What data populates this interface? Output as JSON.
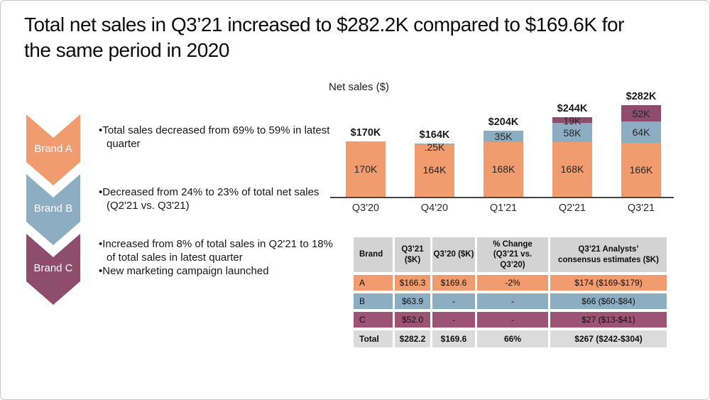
{
  "slide": {
    "title_lines": [
      "Total net sales in Q3’21 increased to $282.2K compared to $169.6K for",
      "the same period in 2020"
    ]
  },
  "colors": {
    "brand_a": "#F09C6E",
    "brand_b": "#8DADC2",
    "brand_c": "#8E4D6D",
    "brand_c_table": "#9C5375",
    "table_header_bg": "#D3D3D3",
    "table_total_bg": "#DBDBDB",
    "axis": "#454545"
  },
  "brands": [
    {
      "name": "Brand A",
      "bullets": [
        "Total sales decreased from 69% to 59% in latest quarter"
      ]
    },
    {
      "name": "Brand B",
      "bullets": [
        "Decreased from 24% to 23% of total net sales (Q2'21 vs. Q3'21)"
      ]
    },
    {
      "name": "Brand C",
      "bullets": [
        "Increased from 8% of total sales in Q2'21 to 18% of total sales in latest quarter",
        "New marketing campaign launched"
      ]
    }
  ],
  "chart_data": {
    "type": "bar",
    "stacked": true,
    "title": "Net sales ($)",
    "categories": [
      "Q3'20",
      "Q4'20",
      "Q1'21",
      "Q2'21",
      "Q3'21"
    ],
    "series": [
      {
        "name": "Brand A",
        "color": "#F09C6E",
        "values": [
          170,
          164,
          168,
          168,
          166
        ],
        "labels": [
          "170K",
          "164K",
          "168K",
          "168K",
          "166K"
        ]
      },
      {
        "name": "Brand B",
        "color": "#8DADC2",
        "values": [
          0,
          0.25,
          35,
          58,
          64
        ],
        "labels": [
          "",
          ".25K",
          "35K",
          "58K",
          "64K"
        ]
      },
      {
        "name": "Brand C",
        "color": "#8E4D6D",
        "values": [
          0,
          0,
          0,
          19,
          52
        ],
        "labels": [
          "",
          "",
          "",
          "19K",
          "52K"
        ]
      }
    ],
    "totals": [
      "$170K",
      "$164K",
      "$204K",
      "$244K",
      "$282K"
    ],
    "ylabel": "Net sales ($)",
    "unit": "K",
    "ylim": [
      0,
      300
    ],
    "legend": "none",
    "grid": false
  },
  "table": {
    "headers": [
      "Brand",
      "Q3’21 ($K)",
      "Q3’20 ($K)",
      "% Change (Q3’21 vs. Q3’20)",
      "Q3’21 Analysts’ consensus estimates ($K)"
    ],
    "rows": [
      {
        "brand": "A",
        "q3_21": "$166.3",
        "q3_20": "$169.6",
        "pct_change": "-2%",
        "estimates": "$174 ($169-$179)"
      },
      {
        "brand": "B",
        "q3_21": "$63.9",
        "q3_20": "-",
        "pct_change": "-",
        "estimates": "$66 ($60-$84)"
      },
      {
        "brand": "C",
        "q3_21": "$52.0",
        "q3_20": "-",
        "pct_change": "-",
        "estimates": "$27 ($13-$41)"
      }
    ],
    "total_row": {
      "brand": "Total",
      "q3_21": "$282.2",
      "q3_20": "$169.6",
      "pct_change": "66%",
      "estimates": "$267 ($242-$304)"
    }
  }
}
